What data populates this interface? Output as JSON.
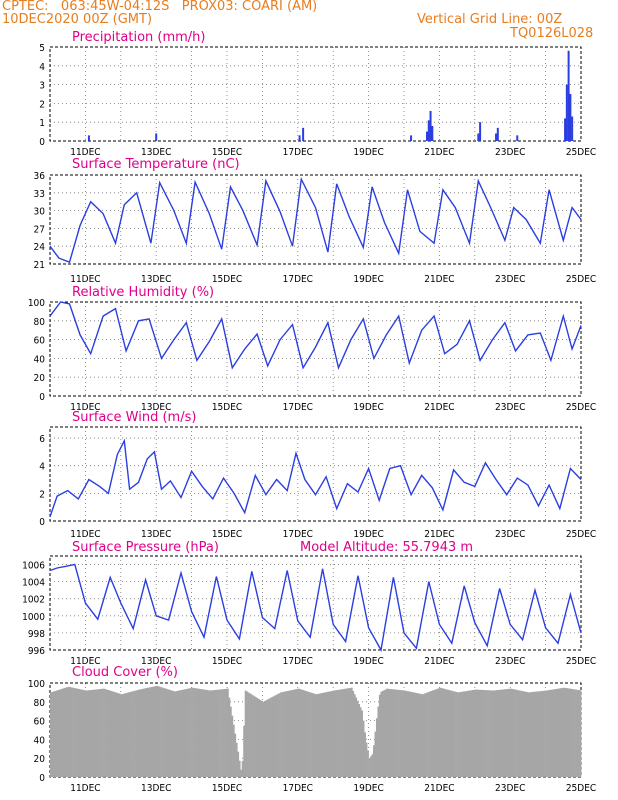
{
  "header": {
    "left_line1": "CPTEC:   063:45W-04:12S   PROX03: COARI (AM)",
    "left_line2": "10DEC2020 00Z (GMT)",
    "right_line1": "Vertical Grid Line: 00Z",
    "right_line2": "TQ0126L028"
  },
  "colors": {
    "title": "#e0008a",
    "header": "#e87d1e",
    "series": "#2b3fe0",
    "cloud": "#a6a6a6"
  },
  "chart_data": [
    {
      "type": "bar",
      "title": "Precipitation (mm/h)",
      "x_tick_labels": [
        "11DEC",
        "13DEC",
        "15DEC",
        "17DEC",
        "19DEC",
        "21DEC",
        "23DEC",
        "25DEC"
      ],
      "ylim": [
        0,
        5
      ],
      "yticks": [
        0,
        1,
        2,
        3,
        4,
        5
      ],
      "grid": true,
      "bars": [
        {
          "day": 11.1,
          "value": 0.3
        },
        {
          "day": 13.0,
          "value": 0.4
        },
        {
          "day": 17.05,
          "value": 0.3
        },
        {
          "day": 17.15,
          "value": 0.7
        },
        {
          "day": 20.2,
          "value": 0.3
        },
        {
          "day": 20.65,
          "value": 0.5
        },
        {
          "day": 20.7,
          "value": 1.1
        },
        {
          "day": 20.75,
          "value": 1.6
        },
        {
          "day": 20.8,
          "value": 0.8
        },
        {
          "day": 22.1,
          "value": 0.4
        },
        {
          "day": 22.15,
          "value": 1.0
        },
        {
          "day": 22.6,
          "value": 0.4
        },
        {
          "day": 22.65,
          "value": 0.7
        },
        {
          "day": 23.2,
          "value": 0.3
        },
        {
          "day": 24.55,
          "value": 1.2
        },
        {
          "day": 24.6,
          "value": 3.0
        },
        {
          "day": 24.65,
          "value": 4.8
        },
        {
          "day": 24.7,
          "value": 2.5
        },
        {
          "day": 24.75,
          "value": 1.3
        }
      ]
    },
    {
      "type": "line",
      "title": "Surface Temperature (nC)",
      "x_tick_labels": [
        "11DEC",
        "13DEC",
        "15DEC",
        "17DEC",
        "19DEC",
        "21DEC",
        "23DEC",
        "25DEC"
      ],
      "ylim": [
        21,
        36
      ],
      "yticks": [
        21,
        24,
        27,
        30,
        33,
        36
      ],
      "grid": true,
      "x": [
        10.0,
        10.25,
        10.55,
        10.85,
        11.15,
        11.5,
        11.85,
        12.1,
        12.45,
        12.85,
        13.1,
        13.5,
        13.85,
        14.1,
        14.5,
        14.85,
        15.1,
        15.45,
        15.85,
        16.1,
        16.5,
        16.85,
        17.1,
        17.5,
        17.85,
        18.1,
        18.45,
        18.85,
        19.1,
        19.45,
        19.85,
        20.1,
        20.45,
        20.85,
        21.1,
        21.45,
        21.85,
        22.1,
        22.45,
        22.85,
        23.1,
        23.45,
        23.85,
        24.1,
        24.5,
        24.75,
        25.0
      ],
      "y": [
        24.0,
        22.0,
        21.3,
        27.5,
        31.5,
        29.5,
        24.5,
        31.0,
        33.0,
        24.5,
        34.7,
        30.0,
        24.5,
        34.8,
        29.5,
        23.5,
        34.0,
        30.0,
        24.2,
        35.0,
        29.8,
        24.0,
        35.3,
        30.5,
        23.0,
        34.5,
        29.0,
        23.8,
        34.0,
        28.0,
        22.8,
        33.5,
        26.5,
        24.5,
        33.5,
        30.5,
        24.5,
        35.0,
        30.5,
        25.0,
        30.5,
        28.5,
        24.5,
        33.5,
        25.0,
        30.5,
        28.5
      ]
    },
    {
      "type": "line",
      "title": "Relative Humidity (%)",
      "x_tick_labels": [
        "11DEC",
        "13DEC",
        "15DEC",
        "17DEC",
        "19DEC",
        "21DEC",
        "23DEC",
        "25DEC"
      ],
      "ylim": [
        0,
        100
      ],
      "yticks": [
        0,
        20,
        40,
        60,
        80,
        100
      ],
      "grid": true,
      "x": [
        10.0,
        10.3,
        10.55,
        10.85,
        11.15,
        11.5,
        11.85,
        12.15,
        12.5,
        12.8,
        13.15,
        13.5,
        13.85,
        14.15,
        14.5,
        14.85,
        15.15,
        15.5,
        15.85,
        16.15,
        16.5,
        16.85,
        17.15,
        17.5,
        17.85,
        18.15,
        18.5,
        18.85,
        19.15,
        19.5,
        19.85,
        20.15,
        20.5,
        20.85,
        21.15,
        21.5,
        21.85,
        22.15,
        22.5,
        22.85,
        23.15,
        23.5,
        23.85,
        24.15,
        24.5,
        24.75,
        25.0
      ],
      "y": [
        85,
        100,
        98,
        65,
        45,
        85,
        93,
        48,
        80,
        82,
        40,
        60,
        78,
        38,
        58,
        82,
        30,
        50,
        66,
        32,
        60,
        76,
        30,
        52,
        78,
        30,
        60,
        82,
        40,
        65,
        85,
        35,
        70,
        85,
        45,
        55,
        80,
        38,
        60,
        78,
        48,
        65,
        67,
        38,
        85,
        50,
        75
      ]
    },
    {
      "type": "line",
      "title": "Surface Wind (m/s)",
      "x_tick_labels": [
        "11DEC",
        "13DEC",
        "15DEC",
        "17DEC",
        "19DEC",
        "21DEC",
        "23DEC",
        "25DEC"
      ],
      "ylim": [
        0,
        6.8
      ],
      "yticks": [
        0,
        2,
        4,
        6
      ],
      "grid": true,
      "x": [
        10.0,
        10.2,
        10.5,
        10.8,
        11.1,
        11.4,
        11.65,
        11.9,
        12.1,
        12.25,
        12.5,
        12.75,
        12.95,
        13.15,
        13.4,
        13.7,
        14.0,
        14.3,
        14.6,
        14.9,
        15.2,
        15.5,
        15.8,
        16.1,
        16.4,
        16.7,
        16.95,
        17.2,
        17.5,
        17.8,
        18.1,
        18.4,
        18.7,
        19.0,
        19.3,
        19.6,
        19.9,
        20.2,
        20.5,
        20.8,
        21.1,
        21.4,
        21.7,
        22.0,
        22.3,
        22.6,
        22.9,
        23.2,
        23.5,
        23.8,
        24.1,
        24.4,
        24.7,
        25.0
      ],
      "y": [
        0.3,
        1.8,
        2.2,
        1.6,
        3.0,
        2.5,
        2.0,
        4.8,
        5.8,
        2.3,
        2.8,
        4.5,
        5.0,
        2.3,
        2.9,
        1.7,
        3.6,
        2.5,
        1.6,
        3.1,
        2.0,
        0.6,
        3.3,
        1.9,
        3.0,
        2.2,
        4.9,
        3.0,
        1.9,
        3.2,
        0.9,
        2.7,
        2.1,
        3.8,
        1.5,
        3.8,
        4.0,
        1.9,
        3.3,
        2.4,
        0.8,
        3.7,
        2.8,
        2.5,
        4.2,
        3.0,
        1.9,
        3.1,
        2.6,
        1.1,
        2.6,
        0.9,
        3.8,
        3.0
      ]
    },
    {
      "type": "line",
      "title": "Surface Pressure (hPa)",
      "annotation": "Model Altitude: 55.7943 m",
      "x_tick_labels": [
        "11DEC",
        "13DEC",
        "15DEC",
        "17DEC",
        "19DEC",
        "21DEC",
        "23DEC",
        "25DEC"
      ],
      "ylim": [
        996,
        1007
      ],
      "yticks": [
        996,
        998,
        1000,
        1002,
        1004,
        1006
      ],
      "grid": true,
      "x": [
        10.0,
        10.2,
        10.45,
        10.7,
        11.0,
        11.35,
        11.7,
        12.0,
        12.35,
        12.7,
        13.0,
        13.35,
        13.7,
        14.0,
        14.35,
        14.7,
        15.0,
        15.35,
        15.7,
        16.0,
        16.35,
        16.7,
        17.0,
        17.35,
        17.7,
        18.0,
        18.35,
        18.7,
        19.0,
        19.35,
        19.7,
        20.0,
        20.35,
        20.7,
        21.0,
        21.35,
        21.7,
        22.0,
        22.35,
        22.7,
        23.0,
        23.35,
        23.7,
        24.0,
        24.35,
        24.7,
        25.0
      ],
      "y": [
        1005.3,
        1005.6,
        1005.8,
        1006.0,
        1001.5,
        999.6,
        1004.5,
        1001.5,
        998.5,
        1004.2,
        1000.0,
        999.5,
        1005.0,
        1000.5,
        997.5,
        1004.6,
        999.5,
        997.3,
        1005.2,
        999.8,
        998.5,
        1005.3,
        999.4,
        997.5,
        1005.5,
        999.0,
        997.0,
        1004.7,
        998.6,
        996.0,
        1004.5,
        998.0,
        996.2,
        1004.0,
        999.0,
        996.8,
        1003.5,
        999.2,
        996.5,
        1003.2,
        999.0,
        997.2,
        1003.0,
        998.6,
        996.8,
        1002.5,
        998.0
      ]
    },
    {
      "type": "bar",
      "title": "Cloud Cover (%)",
      "x_tick_labels": [
        "11DEC",
        "13DEC",
        "15DEC",
        "17DEC",
        "19DEC",
        "21DEC",
        "23DEC",
        "25DEC"
      ],
      "ylim": [
        0,
        100
      ],
      "yticks": [
        0,
        20,
        40,
        60,
        80,
        100
      ],
      "grid": true,
      "profile_day": [
        10.0,
        10.5,
        11.0,
        11.5,
        12.0,
        12.5,
        13.0,
        13.5,
        14.0,
        14.5,
        15.0,
        15.4,
        15.5,
        16.0,
        16.5,
        17.0,
        17.5,
        18.0,
        18.5,
        18.8,
        18.9,
        19.0,
        19.1,
        19.2,
        19.3,
        19.5,
        20.0,
        20.5,
        21.0,
        21.5,
        22.0,
        22.5,
        23.0,
        23.5,
        24.0,
        24.5,
        25.0
      ],
      "profile_value": [
        90,
        96,
        92,
        94,
        88,
        93,
        97,
        91,
        95,
        92,
        94,
        2,
        92,
        80,
        90,
        94,
        88,
        92,
        95,
        70,
        40,
        20,
        25,
        60,
        90,
        94,
        92,
        88,
        95,
        90,
        93,
        92,
        94,
        90,
        92,
        95,
        92
      ]
    }
  ]
}
